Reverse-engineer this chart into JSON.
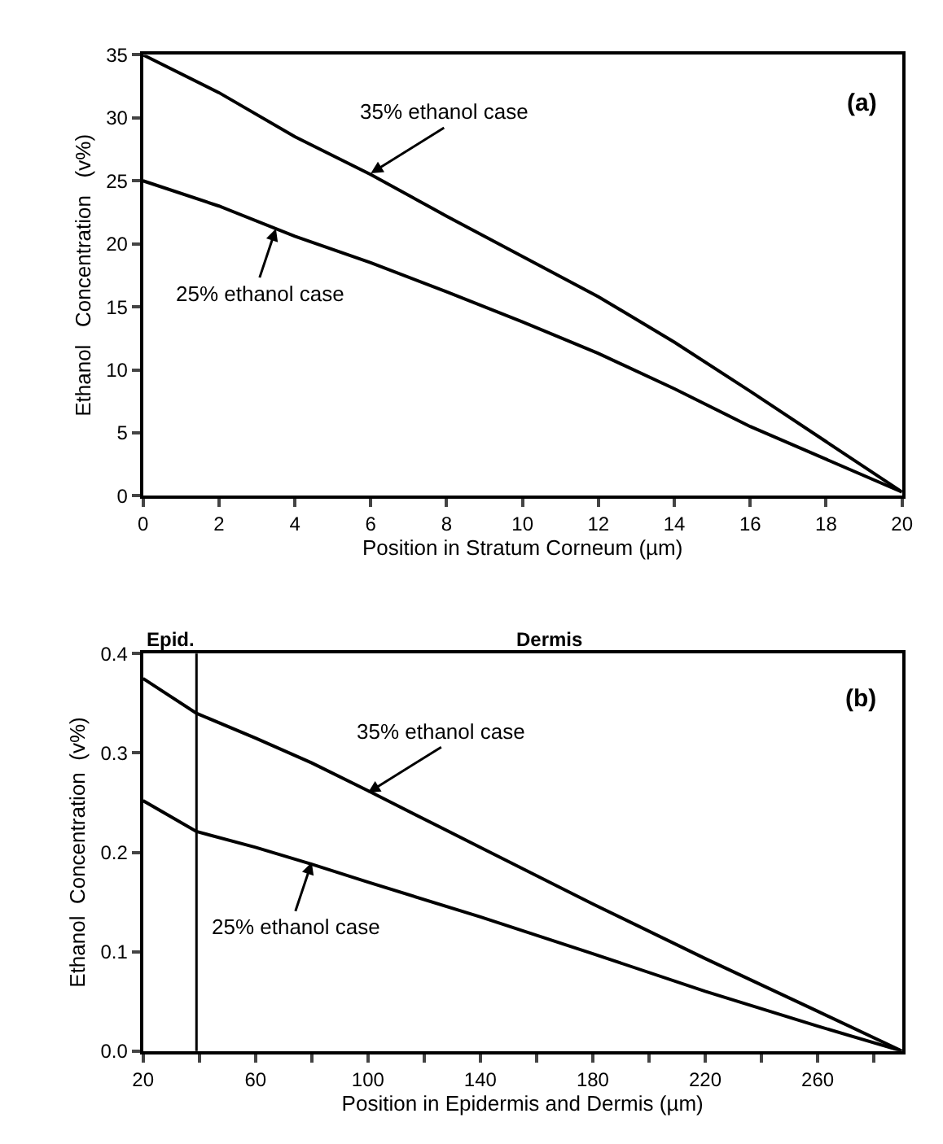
{
  "chart_data": [
    {
      "type": "line",
      "xlabel": "Position in Stratum Corneum (µm)",
      "ylabel": "Ethanol   Concentration   (v%)",
      "x": [
        0,
        2,
        4,
        6,
        8,
        10,
        12,
        14,
        16,
        18,
        20
      ],
      "series": [
        {
          "color": "#000000",
          "values": [
            35,
            32,
            28.5,
            25.5,
            22.2,
            19,
            15.8,
            12.2,
            8.3,
            4.3,
            0.3
          ]
        },
        {
          "color": "#000000",
          "values": [
            25,
            23,
            20.6,
            18.5,
            16.2,
            13.8,
            11.3,
            8.5,
            5.5,
            2.9,
            0.3
          ]
        }
      ],
      "xlim": [
        0,
        20
      ],
      "xticks": [
        0,
        2,
        4,
        6,
        8,
        10,
        12,
        14,
        16,
        18,
        20
      ],
      "ylim": [
        0,
        35
      ],
      "yticks": [
        0,
        5,
        10,
        15,
        20,
        25,
        30,
        35
      ],
      "marker": "none",
      "line_style": "solid",
      "annotations": [
        "(a)",
        {
          "text": "35% ethanol case",
          "x": 6,
          "y": 25.6
        },
        {
          "text": "25% ethanol case",
          "x": 3.5,
          "y": 21.2
        }
      ]
    },
    {
      "type": "line",
      "xlabel": "Position in Epidermis and Dermis (µm)",
      "ylabel": "Ethanol  Concentration  (v%)",
      "x": [
        20,
        39,
        60,
        80,
        100,
        140,
        180,
        220,
        260,
        290
      ],
      "series": [
        {
          "color": "#000000",
          "values": [
            0.375,
            0.34,
            0.315,
            0.29,
            0.262,
            0.205,
            0.148,
            0.093,
            0.04,
            0
          ]
        },
        {
          "color": "#000000",
          "values": [
            0.252,
            0.221,
            0.205,
            0.188,
            0.17,
            0.135,
            0.098,
            0.06,
            0.025,
            0
          ]
        }
      ],
      "xlim": [
        20,
        290
      ],
      "xticks": [
        20,
        {
          "value": 40,
          "label": null
        },
        60,
        {
          "value": 80,
          "label": null
        },
        100,
        {
          "value": 120,
          "label": null
        },
        140,
        {
          "value": 160,
          "label": null
        },
        180,
        {
          "value": 200,
          "label": null
        },
        220,
        {
          "value": 240,
          "label": null
        },
        260,
        {
          "value": 280,
          "label": null
        }
      ],
      "ylim": [
        0,
        0.4
      ],
      "yticks": [
        {
          "value": 0,
          "label": "0.0"
        },
        0.1,
        0.2,
        0.3,
        0.4
      ],
      "marker": "none",
      "line_style": "solid",
      "ref_lines": [
        {
          "axis": "x",
          "value": 39,
          "color": "#000000"
        }
      ],
      "annotations": [
        "(b)",
        "Epid.",
        "Dermis",
        {
          "text": "35% ethanol case",
          "x": 100,
          "y": 0.26
        },
        {
          "text": "25% ethanol case",
          "x": 80,
          "y": 0.19
        }
      ]
    }
  ]
}
